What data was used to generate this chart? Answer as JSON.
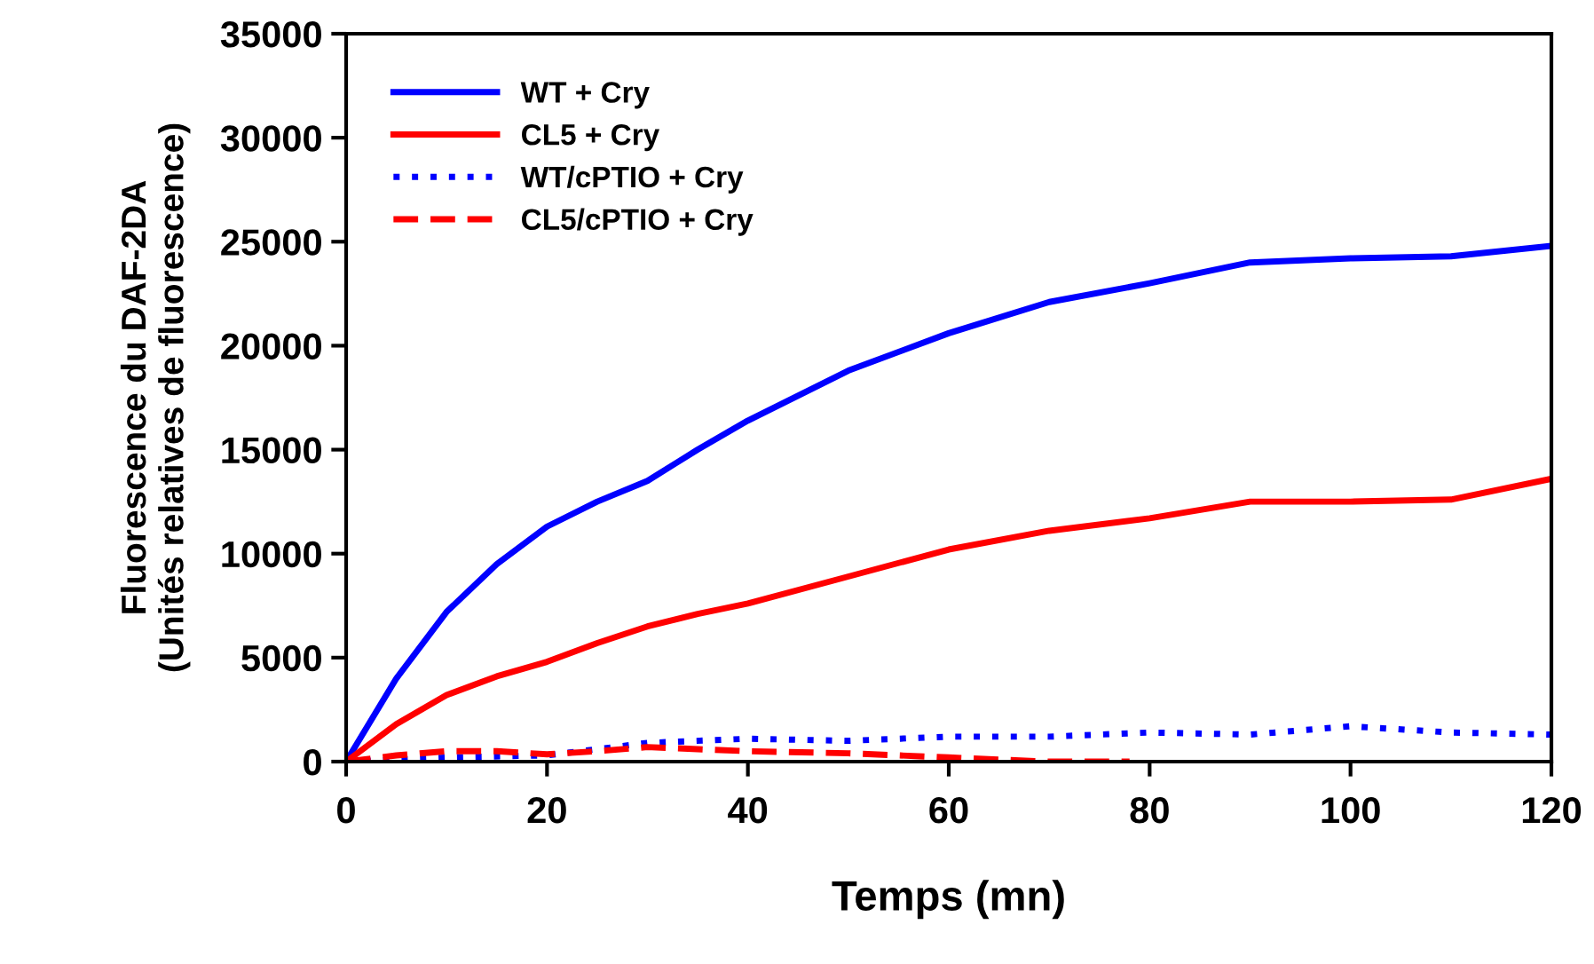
{
  "chart_data": {
    "type": "line",
    "xlabel": "Temps (mn)",
    "ylabel": "Fluorescence du DAF-2DA\n(Unités relatives de fluorescence)",
    "xlim": [
      0,
      120
    ],
    "xticks": [
      0,
      20,
      40,
      60,
      80,
      100,
      120
    ],
    "ylim": [
      0,
      35000
    ],
    "yticks": [
      0,
      5000,
      10000,
      15000,
      20000,
      25000,
      30000,
      35000
    ],
    "grid": false,
    "legend": "top left",
    "marker": "none",
    "series": [
      {
        "name": "WT + Cry",
        "color": "#0000ff",
        "line_style": "solid",
        "x": [
          0,
          5,
          10,
          15,
          20,
          25,
          30,
          35,
          40,
          50,
          60,
          70,
          80,
          90,
          100,
          110,
          120
        ],
        "values": [
          0,
          4000,
          7200,
          9500,
          11300,
          12500,
          13500,
          15000,
          16400,
          18800,
          20600,
          22100,
          23000,
          24000,
          24200,
          24300,
          24800
        ]
      },
      {
        "name": "CL5 + Cry",
        "color": "#ff0000",
        "line_style": "solid",
        "x": [
          0,
          5,
          10,
          15,
          20,
          25,
          30,
          35,
          40,
          50,
          60,
          70,
          80,
          90,
          100,
          110,
          120
        ],
        "values": [
          0,
          1800,
          3200,
          4100,
          4800,
          5700,
          6500,
          7100,
          7600,
          8900,
          10200,
          11100,
          11700,
          12500,
          12500,
          12600,
          13600
        ]
      },
      {
        "name": "WT/cPTIO + Cry",
        "color": "#0000ff",
        "line_style": "dotted",
        "x": [
          0,
          10,
          20,
          25,
          30,
          40,
          50,
          60,
          70,
          80,
          90,
          100,
          110,
          120
        ],
        "values": [
          0,
          200,
          300,
          600,
          900,
          1100,
          1000,
          1200,
          1200,
          1400,
          1300,
          1700,
          1400,
          1300
        ]
      },
      {
        "name": "CL5/cPTIO + Cry",
        "color": "#ff0000",
        "line_style": "dashed",
        "x": [
          0,
          5,
          10,
          15,
          20,
          25,
          30,
          40,
          50,
          60,
          70,
          78
        ],
        "values": [
          0,
          300,
          500,
          500,
          350,
          500,
          700,
          500,
          400,
          200,
          0,
          0
        ]
      }
    ]
  }
}
